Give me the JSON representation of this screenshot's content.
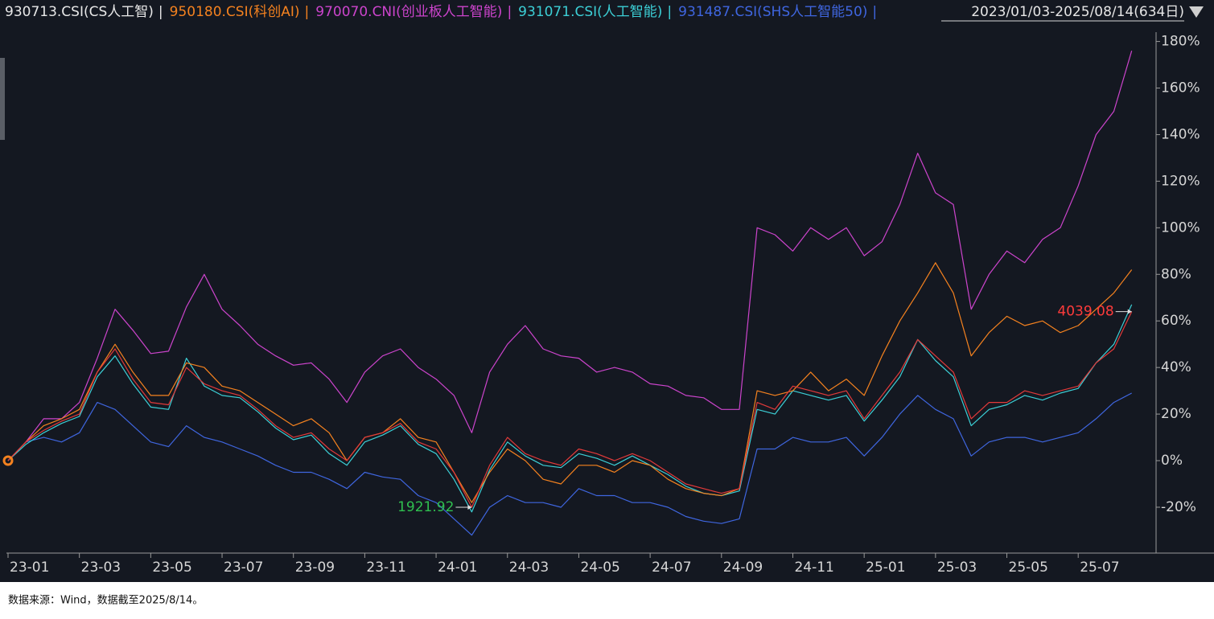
{
  "chart_data": {
    "type": "line",
    "date_range": "2023/01/03-2025/08/14(634日)",
    "legend_separator": "|",
    "source": "数据来源：Wind，数据截至2025/8/14。",
    "categories": [
      "23-01",
      null,
      null,
      null,
      "23-03",
      null,
      null,
      null,
      "23-05",
      null,
      null,
      null,
      "23-07",
      null,
      null,
      null,
      "23-09",
      null,
      null,
      null,
      "23-11",
      null,
      null,
      null,
      "24-01",
      null,
      null,
      null,
      "24-03",
      null,
      null,
      null,
      "24-05",
      null,
      null,
      null,
      "24-07",
      null,
      null,
      null,
      "24-09",
      null,
      null,
      null,
      "24-11",
      null,
      null,
      null,
      "25-01",
      null,
      null,
      null,
      "25-03",
      null,
      null,
      null,
      "25-05",
      null,
      null,
      null,
      "25-07",
      null,
      null,
      null
    ],
    "ylim": [
      -39,
      184
    ],
    "yticks": [
      {
        "value": -20,
        "label": "-20%"
      },
      {
        "value": 0,
        "label": "0%"
      },
      {
        "value": 20,
        "label": "20%"
      },
      {
        "value": 40,
        "label": "40%"
      },
      {
        "value": 60,
        "label": "60%"
      },
      {
        "value": 80,
        "label": "80%"
      },
      {
        "value": 100,
        "label": "100%"
      },
      {
        "value": 120,
        "label": "120%"
      },
      {
        "value": 140,
        "label": "140%"
      },
      {
        "value": 160,
        "label": "160%"
      },
      {
        "value": 180,
        "label": "180%"
      }
    ],
    "grid": false,
    "annotations": [
      {
        "text": "1921.92",
        "color": "#2fbf4f"
      },
      {
        "text": "4039.08",
        "color": "#ff3b3b"
      }
    ],
    "series": [
      {
        "name": "930713.CSI(CS人工智)",
        "color": "#e8e8e8",
        "line_color": "#e23a3a",
        "values": [
          0,
          8,
          13,
          17,
          20,
          38,
          48,
          35,
          25,
          24,
          40,
          33,
          30,
          28,
          22,
          15,
          10,
          12,
          5,
          0,
          10,
          12,
          16,
          8,
          5,
          -5,
          -20,
          -2,
          10,
          3,
          0,
          -2,
          5,
          3,
          0,
          3,
          0,
          -5,
          -10,
          -12,
          -14,
          -12,
          25,
          22,
          32,
          30,
          28,
          30,
          18,
          28,
          38,
          52,
          45,
          38,
          18,
          25,
          25,
          30,
          28,
          30,
          32,
          42,
          48,
          64
        ]
      },
      {
        "name": "950180.CSI(科创AI)",
        "color": "#f5821f",
        "values": [
          0,
          8,
          15,
          18,
          22,
          38,
          50,
          38,
          28,
          28,
          42,
          40,
          32,
          30,
          25,
          20,
          15,
          18,
          12,
          0,
          10,
          12,
          18,
          10,
          8,
          -5,
          -18,
          -5,
          5,
          0,
          -8,
          -10,
          -2,
          -2,
          -5,
          0,
          -2,
          -8,
          -12,
          -14,
          -15,
          -12,
          30,
          28,
          30,
          38,
          30,
          35,
          28,
          45,
          60,
          72,
          85,
          72,
          45,
          55,
          62,
          58,
          60,
          55,
          58,
          65,
          72,
          82
        ]
      },
      {
        "name": "970070.CNI(创业板人工智能)",
        "color": "#cc44cc",
        "values": [
          0,
          8,
          18,
          18,
          25,
          44,
          65,
          56,
          46,
          47,
          66,
          80,
          65,
          58,
          50,
          45,
          41,
          42,
          35,
          25,
          38,
          45,
          48,
          40,
          35,
          28,
          12,
          38,
          50,
          58,
          48,
          45,
          44,
          38,
          40,
          38,
          33,
          32,
          28,
          27,
          22,
          22,
          100,
          97,
          90,
          100,
          95,
          100,
          88,
          94,
          110,
          132,
          115,
          110,
          65,
          80,
          90,
          85,
          95,
          100,
          118,
          140,
          150,
          176
        ]
      },
      {
        "name": "931071.CSI(人工智能)",
        "color": "#3ccfd6",
        "values": [
          0,
          7,
          12,
          16,
          19,
          36,
          45,
          33,
          23,
          22,
          44,
          32,
          28,
          27,
          21,
          14,
          9,
          11,
          3,
          -2,
          8,
          11,
          15,
          7,
          3,
          -8,
          -22,
          -4,
          8,
          2,
          -2,
          -3,
          3,
          1,
          -2,
          2,
          -2,
          -6,
          -11,
          -14,
          -15,
          -13,
          22,
          20,
          30,
          28,
          26,
          28,
          17,
          26,
          36,
          52,
          43,
          36,
          15,
          22,
          24,
          28,
          26,
          29,
          31,
          42,
          50,
          67
        ]
      },
      {
        "name": "931487.CSI(SHS人工智能50)",
        "color": "#3f66e0",
        "values": [
          0,
          8,
          10,
          8,
          12,
          25,
          22,
          15,
          8,
          6,
          15,
          10,
          8,
          5,
          2,
          -2,
          -5,
          -5,
          -8,
          -12,
          -5,
          -7,
          -8,
          -15,
          -18,
          -25,
          -32,
          -20,
          -15,
          -18,
          -18,
          -20,
          -12,
          -15,
          -15,
          -18,
          -18,
          -20,
          -24,
          -26,
          -27,
          -25,
          5,
          5,
          10,
          8,
          8,
          10,
          2,
          10,
          20,
          28,
          22,
          18,
          2,
          8,
          10,
          10,
          8,
          10,
          12,
          18,
          25,
          29
        ]
      }
    ]
  }
}
